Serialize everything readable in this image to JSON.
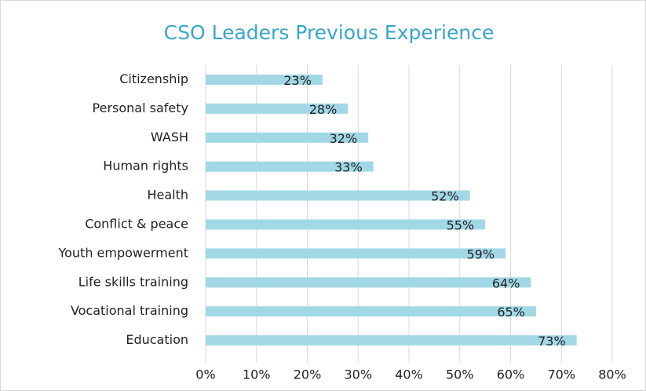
{
  "chart_data": {
    "type": "bar",
    "orientation": "horizontal",
    "title": "CSO Leaders Previous Experience",
    "categories": [
      "Citizenship",
      "Personal safety",
      "WASH",
      "Human rights",
      "Health",
      "Conflict & peace",
      "Youth empowerment",
      "Life skills training",
      "Vocational training",
      "Education"
    ],
    "values": [
      23,
      28,
      32,
      33,
      52,
      55,
      59,
      64,
      65,
      73
    ],
    "value_labels": [
      "23%",
      "28%",
      "32%",
      "33%",
      "52%",
      "55%",
      "59%",
      "64%",
      "65%",
      "73%"
    ],
    "color": "#a2d8e6",
    "xlim": [
      0,
      80
    ],
    "xticks": [
      {
        "value": 0,
        "label": "0%"
      },
      {
        "value": 10,
        "label": "10%"
      },
      {
        "value": 20,
        "label": "20%"
      },
      {
        "value": 30,
        "label": "30%"
      },
      {
        "value": 40,
        "label": "40%"
      },
      {
        "value": 50,
        "label": "50%"
      },
      {
        "value": 60,
        "label": "60%"
      },
      {
        "value": 70,
        "label": "70%"
      },
      {
        "value": 80,
        "label": "80%"
      }
    ],
    "grid": true
  }
}
